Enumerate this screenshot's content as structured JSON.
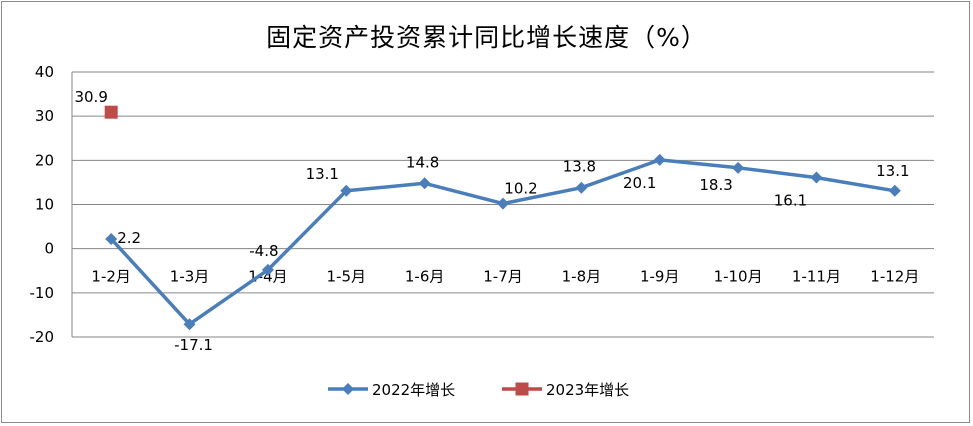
{
  "chart_data": {
    "type": "line",
    "title": "固定资产投资累计同比增长速度（%）",
    "categories": [
      "1-2月",
      "1-3月",
      "1-4月",
      "1-5月",
      "1-6月",
      "1-7月",
      "1-8月",
      "1-9月",
      "1-10月",
      "1-11月",
      "1-12月"
    ],
    "ylim": [
      -20,
      40
    ],
    "yticks": [
      40,
      30,
      20,
      10,
      0,
      -10,
      -20
    ],
    "grid": true,
    "legend_position": "bottom",
    "series": [
      {
        "name": "2022年增长",
        "color": "#4a7ebb",
        "marker": "diamond",
        "values": [
          2.2,
          -17.1,
          -4.8,
          13.1,
          14.8,
          10.2,
          13.8,
          20.1,
          18.3,
          16.1,
          13.1
        ],
        "labels": [
          "2.2",
          "-17.1",
          "-4.8",
          "13.1",
          "14.8",
          "10.2",
          "13.8",
          "20.1",
          "18.3",
          "16.1",
          "13.1"
        ]
      },
      {
        "name": "2023年增长",
        "color": "#be4b48",
        "marker": "square",
        "values": [
          30.9,
          null,
          null,
          null,
          null,
          null,
          null,
          null,
          null,
          null,
          null
        ],
        "labels": [
          "30.9"
        ]
      }
    ]
  }
}
